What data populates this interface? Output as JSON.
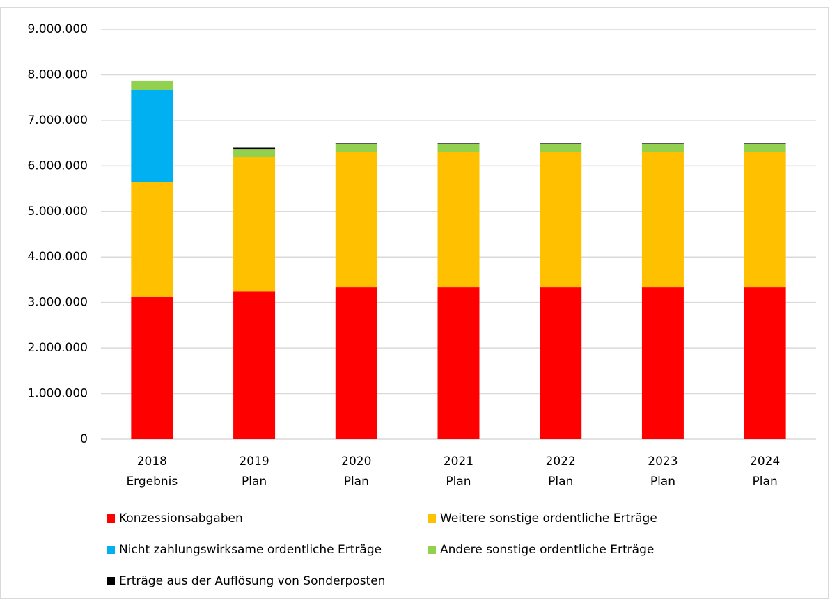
{
  "chart_data": {
    "type": "stacked_bar",
    "categories": [
      [
        "2018",
        "Ergebnis"
      ],
      [
        "2019",
        "Plan"
      ],
      [
        "2020",
        "Plan"
      ],
      [
        "2021",
        "Plan"
      ],
      [
        "2022",
        "Plan"
      ],
      [
        "2023",
        "Plan"
      ],
      [
        "2024",
        "Plan"
      ]
    ],
    "series": [
      {
        "name": "Konzessionsabgaben",
        "color": "#ff0000",
        "values": [
          3120000,
          3250000,
          3330000,
          3330000,
          3330000,
          3330000,
          3330000
        ]
      },
      {
        "name": "Weitere sonstige ordentliche Erträge",
        "color": "#ffc000",
        "values": [
          2520000,
          2940000,
          2980000,
          2980000,
          2980000,
          2980000,
          2980000
        ]
      },
      {
        "name": "Nicht zahlungswirksame ordentliche Erträge",
        "color": "#00b0f0",
        "values": [
          2030000,
          0,
          0,
          0,
          0,
          0,
          0
        ]
      },
      {
        "name": "Andere sonstige ordentliche Erträge",
        "color": "#92d050",
        "values": [
          190000,
          180000,
          170000,
          170000,
          170000,
          170000,
          170000
        ]
      },
      {
        "name": "Erträge aus der Auflösung von Sonderposten",
        "color": "#000000",
        "values": [
          10000,
          40000,
          10000,
          10000,
          10000,
          10000,
          10000
        ]
      }
    ],
    "ylim": [
      0,
      9000000
    ],
    "yticks": [
      0,
      {
        "value": 1000000,
        "label": "1.000.000"
      },
      {
        "value": 2000000,
        "label": "2.000.000"
      },
      {
        "value": 3000000,
        "label": "3.000.000"
      },
      {
        "value": 4000000,
        "label": "4.000.000"
      },
      {
        "value": 5000000,
        "label": "5.000.000"
      },
      {
        "value": 6000000,
        "label": "6.000.000"
      },
      {
        "value": 7000000,
        "label": "7.000.000"
      },
      {
        "value": 8000000,
        "label": "8.000.000"
      },
      {
        "value": 9000000,
        "label": "9.000.000"
      }
    ],
    "grid": true
  }
}
